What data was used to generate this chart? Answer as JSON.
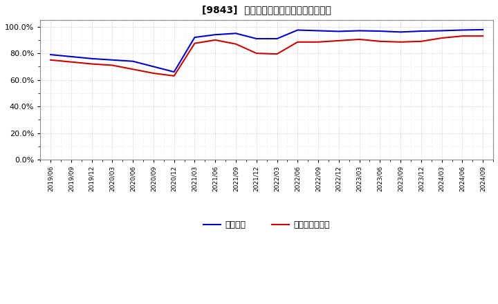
{
  "title": "[9843]  固定比率、固定長期適合率の推移",
  "line1_label": "固定比率",
  "line2_label": "固定長期適合率",
  "line1_color": "#0000cc",
  "line2_color": "#cc0000",
  "background_color": "#ffffff",
  "plot_bg_color": "#ffffff",
  "grid_color": "#bbbbbb",
  "ylim": [
    0.0,
    1.05
  ],
  "yticks": [
    0.0,
    0.2,
    0.4,
    0.6,
    0.8,
    1.0
  ],
  "x_labels": [
    "2019/06",
    "2019/09",
    "2019/12",
    "2020/03",
    "2020/06",
    "2020/09",
    "2020/12",
    "2021/03",
    "2021/06",
    "2021/09",
    "2021/12",
    "2022/03",
    "2022/06",
    "2022/09",
    "2022/12",
    "2023/03",
    "2023/06",
    "2023/09",
    "2023/12",
    "2024/03",
    "2024/06",
    "2024/09"
  ],
  "line1_values": [
    0.79,
    0.775,
    0.76,
    0.75,
    0.74,
    0.7,
    0.66,
    0.92,
    0.94,
    0.95,
    0.91,
    0.91,
    0.975,
    0.97,
    0.965,
    0.97,
    0.967,
    0.96,
    0.967,
    0.97,
    0.975,
    0.978
  ],
  "line2_values": [
    0.75,
    0.735,
    0.72,
    0.71,
    0.68,
    0.65,
    0.63,
    0.875,
    0.9,
    0.87,
    0.8,
    0.795,
    0.885,
    0.885,
    0.895,
    0.905,
    0.89,
    0.885,
    0.89,
    0.915,
    0.93,
    0.93
  ]
}
